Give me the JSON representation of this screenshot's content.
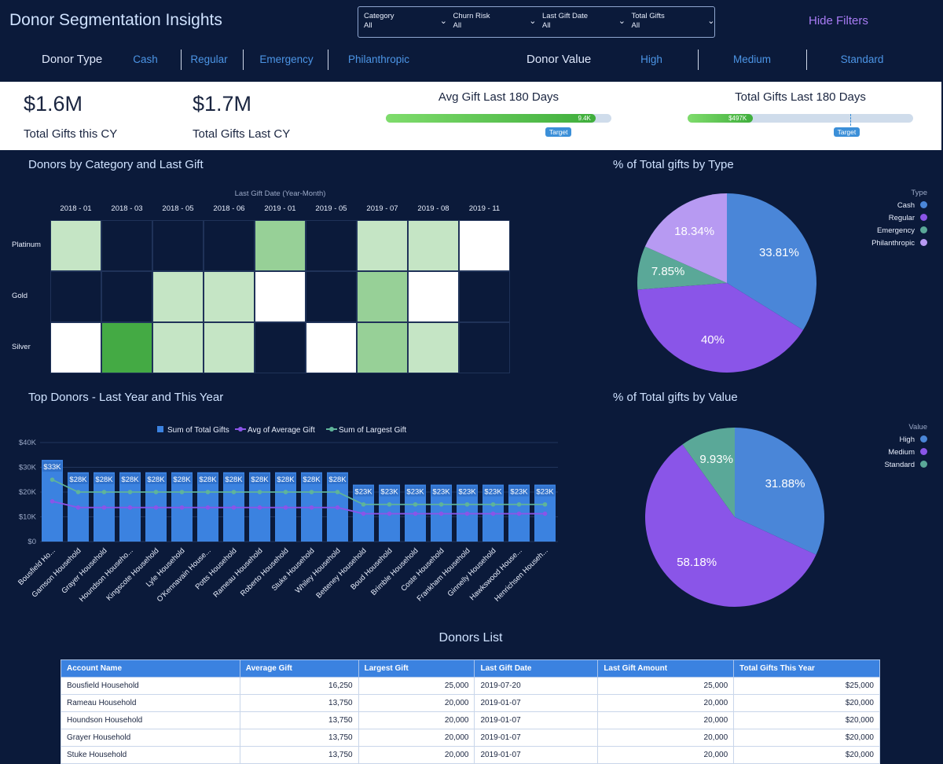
{
  "app": {
    "title": "Donor Segmentation Insights",
    "hide_filters": "Hide Filters"
  },
  "filters": [
    {
      "label": "Category",
      "value": "All"
    },
    {
      "label": "Churn Risk",
      "value": "All"
    },
    {
      "label": "Last Gift Date",
      "value": "All"
    },
    {
      "label": "Total Gifts",
      "value": "All"
    }
  ],
  "donor_type": {
    "label": "Donor Type",
    "options": [
      "Cash",
      "Regular",
      "Emergency",
      "Philanthropic"
    ]
  },
  "donor_value": {
    "label": "Donor Value",
    "options": [
      "High",
      "Medium",
      "Standard"
    ]
  },
  "kpis": {
    "cy_value": "$1.6M",
    "cy_label": "Total Gifts this CY",
    "ly_value": "$1.7M",
    "ly_label": "Total Gifts Last CY"
  },
  "gauges": {
    "avg_gift": {
      "title": "Avg Gift Last 180 Days",
      "label": "9.4K",
      "fill_fraction": 0.93,
      "target_fraction": 0.78,
      "target_label": "Target"
    },
    "total_gifts": {
      "title": "Total Gifts Last 180 Days",
      "label": "$497K",
      "fill_fraction": 0.29,
      "target_fraction": 0.72,
      "target_label": "Target"
    }
  },
  "colors": {
    "cash": "#4a86d8",
    "regular": "#8a55e8",
    "emergency": "#5aa898",
    "philanthropic": "#b79af2",
    "bg": "#0b1a3a",
    "accent": "#3b82e0"
  },
  "heatmap": {
    "title": "Donors by Category and Last Gift",
    "x_title": "Last Gift Date (Year-Month)",
    "columns": [
      "2018 - 01",
      "2018 - 03",
      "2018 - 05",
      "2018 - 06",
      "2019 - 01",
      "2019 - 05",
      "2019 - 07",
      "2019 - 08",
      "2019 - 11"
    ],
    "rows": [
      "Platinum",
      "Gold",
      "Silver"
    ],
    "values": [
      [
        1,
        null,
        null,
        null,
        2,
        null,
        1,
        1,
        0
      ],
      [
        null,
        null,
        1,
        1,
        0,
        null,
        2,
        0,
        null
      ],
      [
        0,
        4,
        1,
        1,
        null,
        0,
        2,
        1,
        null
      ]
    ]
  },
  "pie_type": {
    "title": "% of Total gifts by Type",
    "legend_title": "Type",
    "slices": [
      {
        "name": "Cash",
        "value": 33.81,
        "label": "33.81%",
        "color": "#4a86d8"
      },
      {
        "name": "Regular",
        "value": 40,
        "label": "40%",
        "color": "#8a55e8"
      },
      {
        "name": "Emergency",
        "value": 7.85,
        "label": "7.85%",
        "color": "#5aa898"
      },
      {
        "name": "Philanthropic",
        "value": 18.34,
        "label": "18.34%",
        "color": "#b79af2"
      }
    ]
  },
  "pie_value": {
    "title": "% of Total gifts by Value",
    "legend_title": "Value",
    "slices": [
      {
        "name": "High",
        "value": 31.88,
        "label": "31.88%",
        "color": "#4a86d8"
      },
      {
        "name": "Medium",
        "value": 58.18,
        "label": "58.18%",
        "color": "#8a55e8"
      },
      {
        "name": "Standard",
        "value": 9.93,
        "label": "9.93%",
        "color": "#5aa898"
      }
    ]
  },
  "chart_data": {
    "type": "bar",
    "title": "Top Donors - Last Year and This Year",
    "categories": [
      "Bousfield Ho...",
      "Gamson Household",
      "Grayer Household",
      "Houndson Househo...",
      "Kingscote Household",
      "Lyle Household",
      "O'Kennavain House...",
      "Potts Household",
      "Rameau Household",
      "Roberto Household",
      "Stuke Household",
      "Whiley Household",
      "Betteney Household",
      "Boud Household",
      "Brimble Household",
      "Coste Household",
      "Frankham Household",
      "Ginnelly Household",
      "Hawkswood House...",
      "Henrichsen Househ..."
    ],
    "series": [
      {
        "name": "Sum of Total Gifts",
        "kind": "bar",
        "color": "#3b82e0",
        "values": [
          33000,
          28000,
          28000,
          28000,
          28000,
          28000,
          28000,
          28000,
          28000,
          28000,
          28000,
          28000,
          23000,
          23000,
          23000,
          23000,
          23000,
          23000,
          23000,
          23000
        ],
        "labels": [
          "$33K",
          "$28K",
          "$28K",
          "$28K",
          "$28K",
          "$28K",
          "$28K",
          "$28K",
          "$28K",
          "$28K",
          "$28K",
          "$28K",
          "$23K",
          "$23K",
          "$23K",
          "$23K",
          "$23K",
          "$23K",
          "$23K",
          "$23K"
        ]
      },
      {
        "name": "Avg of Average Gift",
        "kind": "line",
        "color": "#8a55e8",
        "values": [
          16250,
          13750,
          13750,
          13750,
          13750,
          13750,
          13750,
          13750,
          13750,
          13750,
          13750,
          13750,
          11250,
          11250,
          11250,
          11250,
          11250,
          11250,
          11250,
          11250
        ]
      },
      {
        "name": "Sum of Largest Gift",
        "kind": "line",
        "color": "#5fb49a",
        "values": [
          25000,
          20000,
          20000,
          20000,
          20000,
          20000,
          20000,
          20000,
          20000,
          20000,
          20000,
          20000,
          15000,
          15000,
          15000,
          15000,
          15000,
          15000,
          15000,
          15000
        ]
      }
    ],
    "yticks": [
      "$0",
      "$10K",
      "$20K",
      "$30K",
      "$40K"
    ],
    "ylim": [
      0,
      40000
    ]
  },
  "donors_list": {
    "title": "Donors List",
    "columns": [
      "Account Name",
      "Average Gift",
      "Largest Gift",
      "Last Gift Date",
      "Last Gift Amount",
      "Total Gifts This Year"
    ],
    "rows": [
      [
        "Bousfield Household",
        "16,250",
        "25,000",
        "2019-07-20",
        "25,000",
        "$25,000"
      ],
      [
        "Rameau Household",
        "13,750",
        "20,000",
        "2019-01-07",
        "20,000",
        "$20,000"
      ],
      [
        "Houndson Household",
        "13,750",
        "20,000",
        "2019-01-07",
        "20,000",
        "$20,000"
      ],
      [
        "Grayer Household",
        "13,750",
        "20,000",
        "2019-01-07",
        "20,000",
        "$20,000"
      ],
      [
        "Stuke Household",
        "13,750",
        "20,000",
        "2019-01-07",
        "20,000",
        "$20,000"
      ]
    ]
  }
}
